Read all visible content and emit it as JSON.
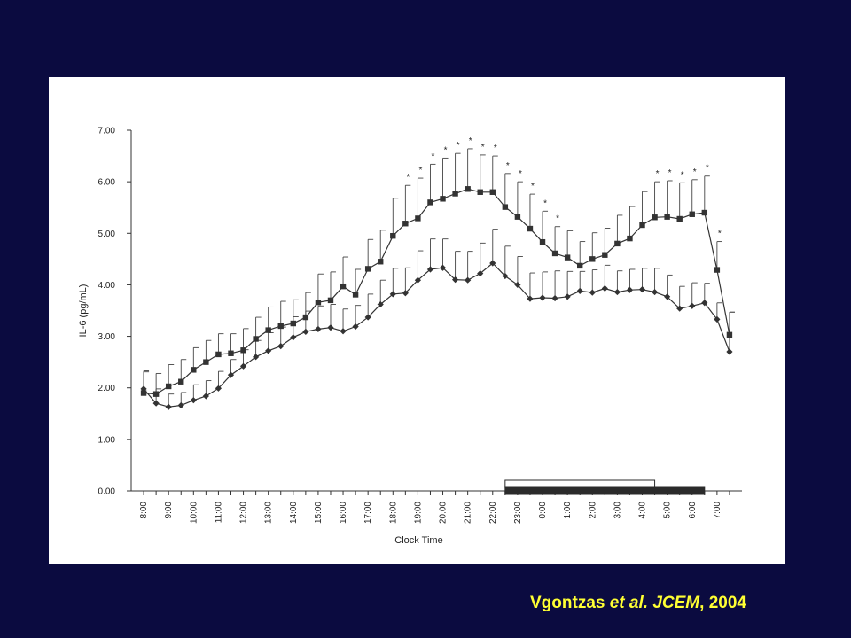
{
  "citation": {
    "author": "Vgontzas",
    "etal": "et al.",
    "journal": "JCEM",
    "comma": ",",
    "year": "2004",
    "color": "#ffff33"
  },
  "colors": {
    "background": "#0b0b40",
    "panel": "#ffffff",
    "series": "#333333",
    "bars": "#2b2b2b"
  },
  "chart_data": {
    "type": "line",
    "title": "",
    "xlabel": "Clock Time",
    "ylabel": "IL-6 (pg/mL)",
    "ylim": [
      0,
      7
    ],
    "yticks": [
      "0.00",
      "1.00",
      "2.00",
      "3.00",
      "4.00",
      "5.00",
      "6.00",
      "7.00"
    ],
    "xticks": [
      "8:00",
      "9:00",
      "10:00",
      "11:00",
      "12:00",
      "13:00",
      "14:00",
      "15:00",
      "16:00",
      "17:00",
      "18:00",
      "19:00",
      "20:00",
      "21:00",
      "22:00",
      "23:00",
      "0:00",
      "1:00",
      "2:00",
      "3:00",
      "4:00",
      "5:00",
      "6:00",
      "7:00"
    ],
    "x_hours": [
      8,
      8.5,
      9,
      9.5,
      10,
      10.5,
      11,
      11.5,
      12,
      12.5,
      13,
      13.5,
      14,
      14.5,
      15,
      15.5,
      16,
      16.5,
      17,
      17.5,
      18,
      18.5,
      19,
      19.5,
      20,
      20.5,
      21,
      21.5,
      22,
      22.5,
      23,
      23.5,
      24,
      24.5,
      25,
      25.5,
      26,
      26.5,
      27,
      27.5,
      28,
      28.5,
      29,
      29.5,
      30,
      30.5,
      31,
      31.5
    ],
    "grid": false,
    "legend": "none",
    "series": [
      {
        "marker": "square",
        "values": [
          1.9,
          1.88,
          2.03,
          2.12,
          2.35,
          2.5,
          2.65,
          2.67,
          2.73,
          2.95,
          3.12,
          3.2,
          3.25,
          3.37,
          3.66,
          3.7,
          3.97,
          3.81,
          4.31,
          4.45,
          4.95,
          5.19,
          5.29,
          5.6,
          5.67,
          5.77,
          5.86,
          5.8,
          5.8,
          5.51,
          5.32,
          5.09,
          4.83,
          4.61,
          4.53,
          4.37,
          4.5,
          4.58,
          4.8,
          4.9,
          5.16,
          5.31,
          5.32,
          5.28,
          5.37,
          5.4,
          4.29,
          3.03
        ],
        "error": [
          0.43,
          0.4,
          0.42,
          0.43,
          0.43,
          0.42,
          0.4,
          0.38,
          0.42,
          0.42,
          0.45,
          0.48,
          0.46,
          0.48,
          0.55,
          0.55,
          0.57,
          0.49,
          0.57,
          0.61,
          0.73,
          0.74,
          0.78,
          0.74,
          0.79,
          0.78,
          0.78,
          0.72,
          0.7,
          0.65,
          0.68,
          0.67,
          0.6,
          0.52,
          0.52,
          0.47,
          0.51,
          0.52,
          0.55,
          0.62,
          0.65,
          0.69,
          0.7,
          0.7,
          0.67,
          0.71,
          0.55,
          0.44
        ]
      },
      {
        "marker": "diamond",
        "values": [
          1.98,
          1.7,
          1.63,
          1.66,
          1.76,
          1.84,
          1.99,
          2.25,
          2.42,
          2.6,
          2.72,
          2.81,
          2.98,
          3.09,
          3.14,
          3.17,
          3.1,
          3.19,
          3.37,
          3.62,
          3.82,
          3.84,
          4.09,
          4.3,
          4.33,
          4.1,
          4.09,
          4.22,
          4.42,
          4.17,
          4.0,
          3.73,
          3.75,
          3.74,
          3.77,
          3.88,
          3.85,
          3.93,
          3.86,
          3.9,
          3.91,
          3.86,
          3.77,
          3.54,
          3.59,
          3.65,
          3.33,
          2.7
        ],
        "error": [
          0.33,
          0.28,
          0.25,
          0.25,
          0.3,
          0.3,
          0.33,
          0.3,
          0.32,
          0.32,
          0.35,
          0.37,
          0.4,
          0.4,
          0.45,
          0.45,
          0.43,
          0.41,
          0.45,
          0.47,
          0.5,
          0.49,
          0.57,
          0.59,
          0.56,
          0.55,
          0.56,
          0.59,
          0.66,
          0.58,
          0.55,
          0.5,
          0.5,
          0.53,
          0.49,
          0.38,
          0.44,
          0.45,
          0.41,
          0.4,
          0.41,
          0.46,
          0.42,
          0.43,
          0.45,
          0.38,
          0.32,
          0.77
        ]
      }
    ],
    "significance_marker": "*",
    "significance_hours": [
      18.5,
      19,
      19.5,
      20,
      20.5,
      21,
      21.5,
      22,
      22.5,
      23,
      23.5,
      24,
      24.5,
      28.5,
      29,
      29.5,
      30,
      30.5,
      31
    ],
    "bars": [
      {
        "fill": "white",
        "start_hour": 22.5,
        "end_hour": 28.5
      },
      {
        "fill": "black",
        "start_hour": 22.5,
        "end_hour": 30.5
      }
    ]
  }
}
